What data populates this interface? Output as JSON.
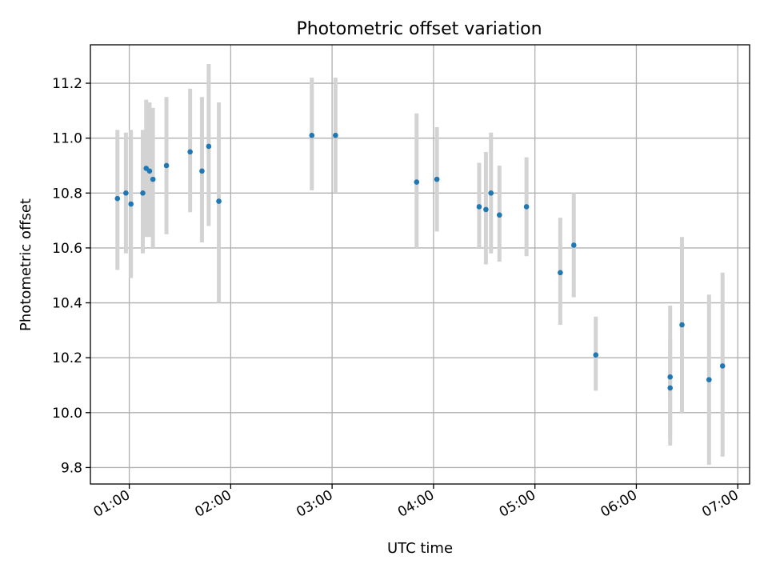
{
  "chart_data": {
    "type": "scatter",
    "title": "Photometric offset variation",
    "xlabel": "UTC time",
    "ylabel": "Photometric offset",
    "xlim": [
      "00:37",
      "07:07"
    ],
    "ylim": [
      9.74,
      11.34
    ],
    "grid": true,
    "x_ticks": [
      "01:00",
      "02:00",
      "03:00",
      "04:00",
      "05:00",
      "06:00",
      "07:00"
    ],
    "y_ticks": [
      "9.8",
      "10.0",
      "10.2",
      "10.4",
      "10.6",
      "10.8",
      "11.0",
      "11.2"
    ],
    "colors": {
      "marker": "#1f77b4",
      "errorbar": "#d3d3d3",
      "grid": "#b0b0b0"
    },
    "series": [
      {
        "points": [
          {
            "x": "00:53",
            "y": 10.78,
            "ylow": 10.52,
            "yhigh": 11.03
          },
          {
            "x": "00:58",
            "y": 10.8,
            "ylow": 10.58,
            "yhigh": 11.02
          },
          {
            "x": "01:01",
            "y": 10.76,
            "ylow": 10.49,
            "yhigh": 11.03
          },
          {
            "x": "01:08",
            "y": 10.8,
            "ylow": 10.58,
            "yhigh": 11.03
          },
          {
            "x": "01:10",
            "y": 10.89,
            "ylow": 10.64,
            "yhigh": 11.14
          },
          {
            "x": "01:12",
            "y": 10.88,
            "ylow": 10.64,
            "yhigh": 11.13
          },
          {
            "x": "01:14",
            "y": 10.85,
            "ylow": 10.6,
            "yhigh": 11.11
          },
          {
            "x": "01:22",
            "y": 10.9,
            "ylow": 10.65,
            "yhigh": 11.15
          },
          {
            "x": "01:36",
            "y": 10.95,
            "ylow": 10.73,
            "yhigh": 11.18
          },
          {
            "x": "01:43",
            "y": 10.88,
            "ylow": 10.62,
            "yhigh": 11.15
          },
          {
            "x": "01:47",
            "y": 10.97,
            "ylow": 10.68,
            "yhigh": 11.27
          },
          {
            "x": "01:53",
            "y": 10.77,
            "ylow": 10.4,
            "yhigh": 11.13
          },
          {
            "x": "02:48",
            "y": 11.01,
            "ylow": 10.81,
            "yhigh": 11.22
          },
          {
            "x": "03:02",
            "y": 11.01,
            "ylow": 10.8,
            "yhigh": 11.22
          },
          {
            "x": "03:50",
            "y": 10.84,
            "ylow": 10.6,
            "yhigh": 11.09
          },
          {
            "x": "04:02",
            "y": 10.85,
            "ylow": 10.66,
            "yhigh": 11.04
          },
          {
            "x": "04:27",
            "y": 10.75,
            "ylow": 10.6,
            "yhigh": 10.91
          },
          {
            "x": "04:31",
            "y": 10.74,
            "ylow": 10.54,
            "yhigh": 10.95
          },
          {
            "x": "04:34",
            "y": 10.8,
            "ylow": 10.58,
            "yhigh": 11.02
          },
          {
            "x": "04:39",
            "y": 10.72,
            "ylow": 10.55,
            "yhigh": 10.9
          },
          {
            "x": "04:55",
            "y": 10.75,
            "ylow": 10.57,
            "yhigh": 10.93
          },
          {
            "x": "05:15",
            "y": 10.51,
            "ylow": 10.32,
            "yhigh": 10.71
          },
          {
            "x": "05:23",
            "y": 10.61,
            "ylow": 10.42,
            "yhigh": 10.8
          },
          {
            "x": "05:36",
            "y": 10.21,
            "ylow": 10.08,
            "yhigh": 10.35
          },
          {
            "x": "06:20",
            "y": 10.09,
            "ylow": 9.91,
            "yhigh": 10.27
          },
          {
            "x": "06:20",
            "y": 10.13,
            "ylow": 9.88,
            "yhigh": 10.39
          },
          {
            "x": "06:27",
            "y": 10.32,
            "ylow": 10.0,
            "yhigh": 10.64
          },
          {
            "x": "06:43",
            "y": 10.12,
            "ylow": 9.81,
            "yhigh": 10.43
          },
          {
            "x": "06:51",
            "y": 10.17,
            "ylow": 9.84,
            "yhigh": 10.51
          }
        ]
      }
    ]
  }
}
